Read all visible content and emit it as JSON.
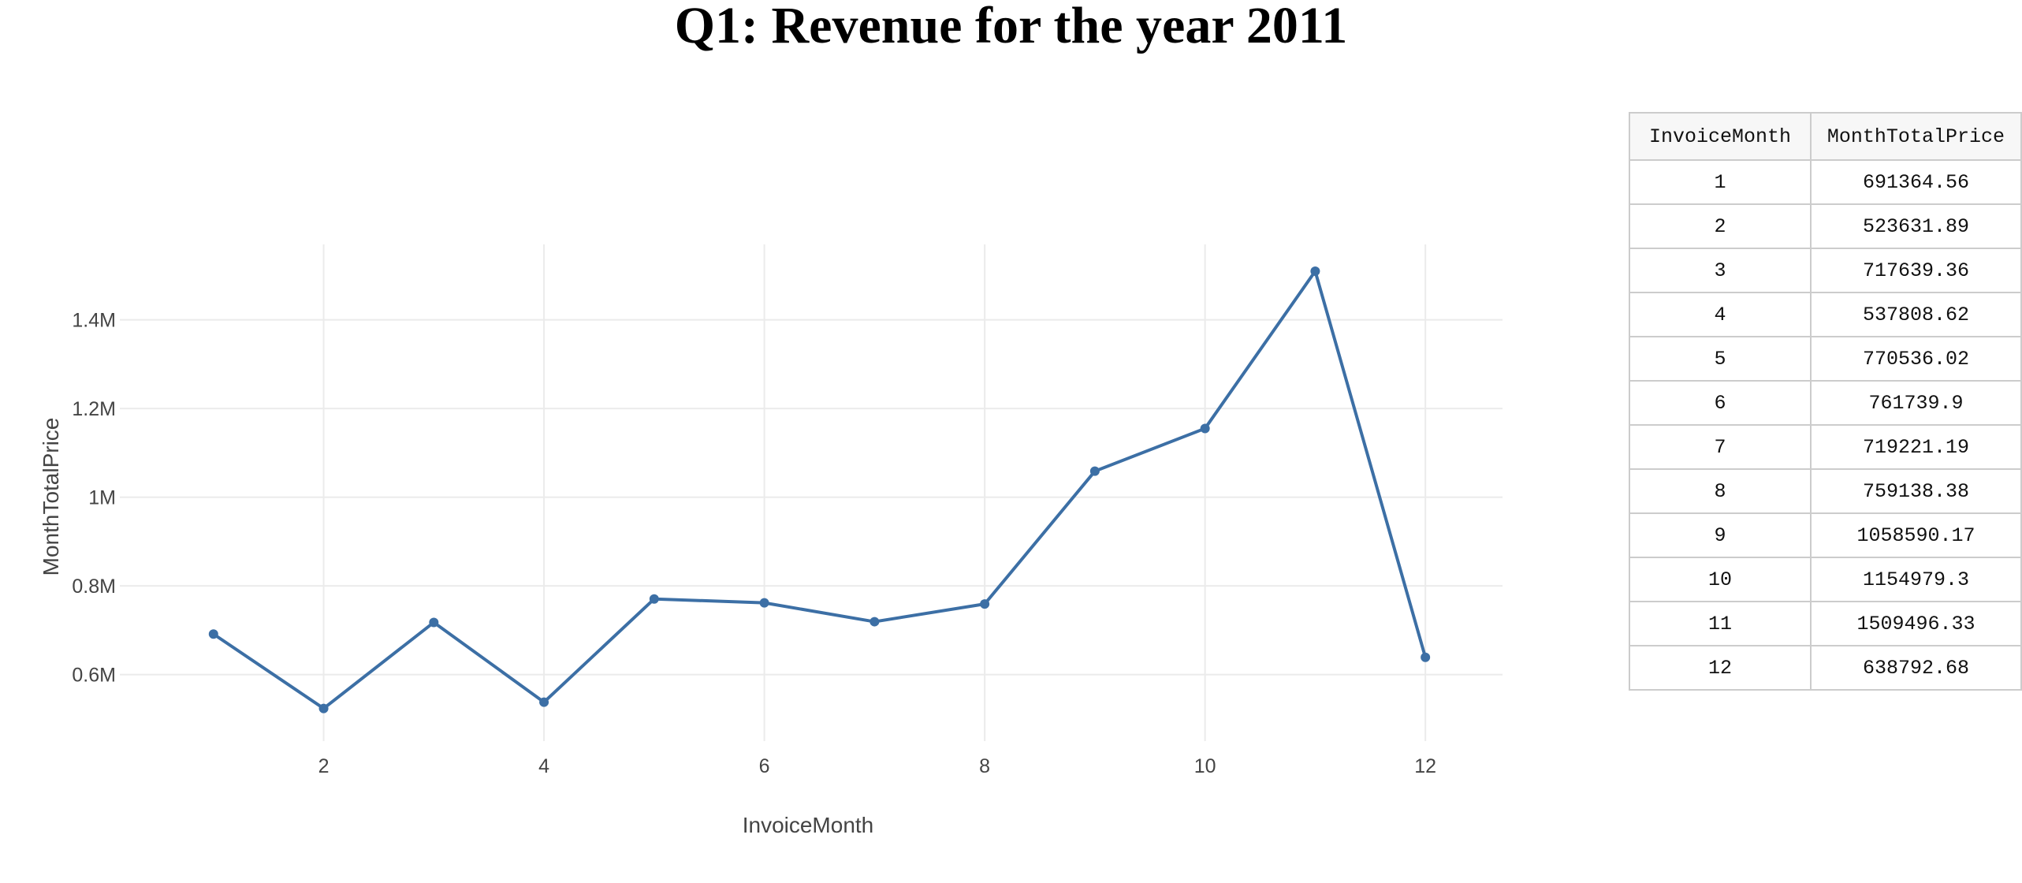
{
  "title": "Q1: Revenue for the year 2011",
  "colors": {
    "line": "#3c6fa5",
    "grid": "#ebebeb",
    "tick_text": "#444444",
    "table_border": "#cccccc",
    "table_header_bg": "#f7f7f7"
  },
  "chart_data": {
    "type": "line",
    "title": "",
    "xlabel": "InvoiceMonth",
    "ylabel": "MonthTotalPrice",
    "x": [
      1,
      2,
      3,
      4,
      5,
      6,
      7,
      8,
      9,
      10,
      11,
      12
    ],
    "series": [
      {
        "values": [
          691364.56,
          523631.89,
          717639.36,
          537808.62,
          770536.02,
          761739.9,
          719221.19,
          759138.38,
          1058590.17,
          1154979.3,
          1509496.33,
          638792.68
        ]
      }
    ],
    "xlim": [
      0.15,
      12.7
    ],
    "ylim": [
      450000,
      1570000
    ],
    "x_ticks": [
      2,
      4,
      6,
      8,
      10,
      12
    ],
    "x_tick_labels": [
      "2",
      "4",
      "6",
      "8",
      "10",
      "12"
    ],
    "y_ticks": [
      600000,
      800000,
      1000000,
      1200000,
      1400000
    ],
    "y_tick_labels": [
      "0.6M",
      "0.8M",
      "1M",
      "1.2M",
      "1.4M"
    ],
    "grid": true,
    "legend": "none"
  },
  "table": {
    "headers": [
      "InvoiceMonth",
      "MonthTotalPrice"
    ],
    "rows": [
      [
        "1",
        "691364.56"
      ],
      [
        "2",
        "523631.89"
      ],
      [
        "3",
        "717639.36"
      ],
      [
        "4",
        "537808.62"
      ],
      [
        "5",
        "770536.02"
      ],
      [
        "6",
        "761739.9"
      ],
      [
        "7",
        "719221.19"
      ],
      [
        "8",
        "759138.38"
      ],
      [
        "9",
        "1058590.17"
      ],
      [
        "10",
        "1154979.3"
      ],
      [
        "11",
        "1509496.33"
      ],
      [
        "12",
        "638792.68"
      ]
    ]
  }
}
